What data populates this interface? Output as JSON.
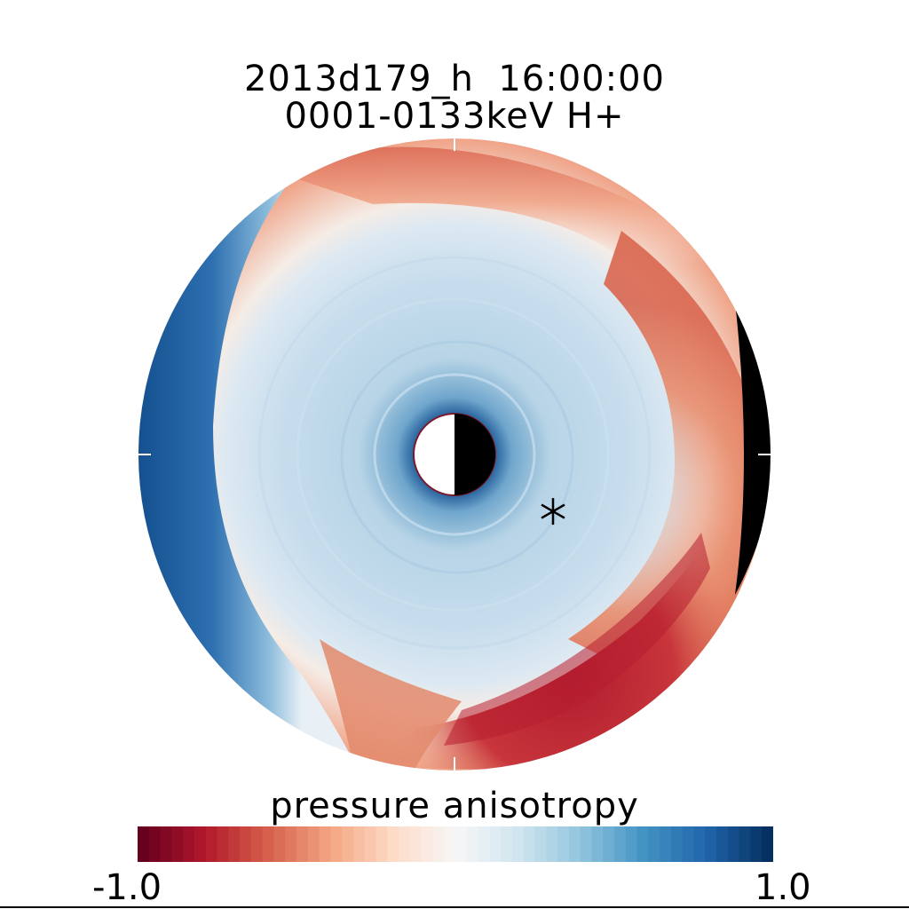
{
  "chart_data": {
    "type": "heatmap",
    "projection": "polar equatorial plane, Earth at center, noon to the right",
    "title_line1": "2013d179_h  16:00:00",
    "title_line2": "0001-0133keV H+",
    "colorbar_label": "pressure anisotropy",
    "colorbar_min": "-1.0",
    "colorbar_max": "1.0",
    "vmin": -1.0,
    "vmax": 1.0,
    "colormap": [
      "#67001f",
      "#b2182b",
      "#d6604d",
      "#f4a582",
      "#fddbc7",
      "#f7f7f7",
      "#d1e5f0",
      "#92c5de",
      "#4393c3",
      "#2166ac",
      "#053061"
    ],
    "markers": [
      {
        "symbol": "asterisk",
        "angle_deg": -30,
        "radius_fraction": 0.36
      }
    ],
    "features": [
      "Earth disk: day side white, night side black",
      "black eclipse crescent on the right edge"
    ]
  }
}
